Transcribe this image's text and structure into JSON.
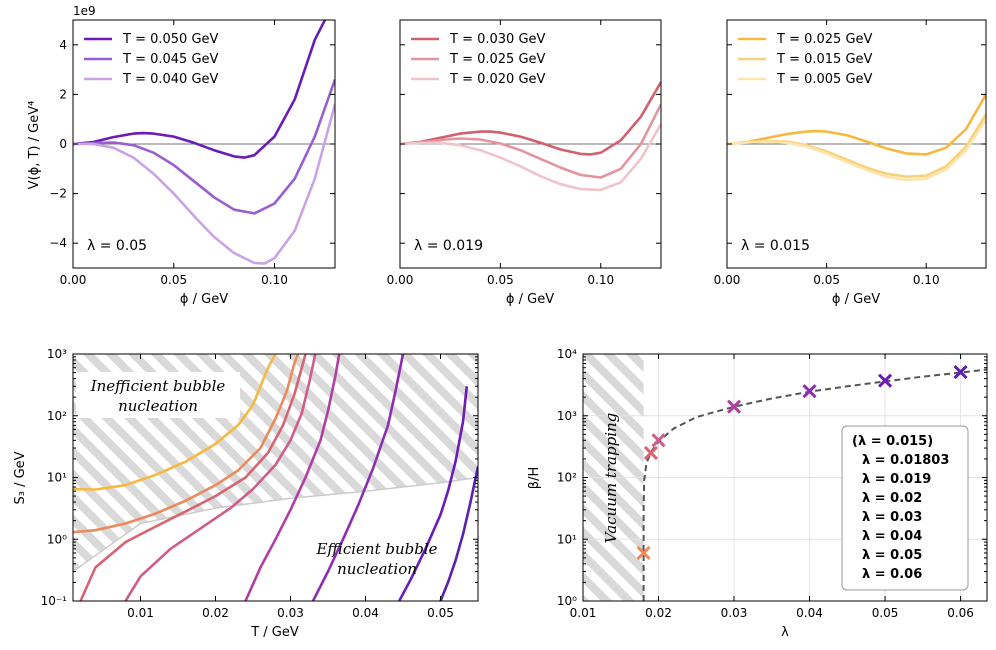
{
  "colors": {
    "purple_dark": "#6a1cb8",
    "purple_mid": "#9a5ed0",
    "purple_light": "#c9a3e6",
    "red_dark": "#d2606e",
    "red_mid": "#e294a0",
    "red_light": "#f0c4cb",
    "yellow_dark": "#f5b942",
    "yellow_mid": "#f8d27a",
    "yellow_light": "#fbe4ae"
  },
  "chart_data": [
    {
      "id": "p1",
      "type": "line",
      "xlim": [
        0,
        0.13
      ],
      "ylim": [
        -5,
        5
      ],
      "offset_text": "1e9",
      "xlabel": "ϕ / GeV",
      "ylabel": "V(ϕ, T) / GeV⁴",
      "xticks": [
        "0.00",
        "0.05",
        "0.10"
      ],
      "xtick_values": [
        0,
        0.05,
        0.1
      ],
      "yticks": [
        "−4",
        "−2",
        "0",
        "2",
        "4"
      ],
      "ytick_values": [
        -4,
        -2,
        0,
        2,
        4
      ],
      "lambda_label": "λ = 0.05",
      "lambda_color": "#6a1cb8",
      "series": [
        {
          "name": "T = 0.050 GeV",
          "color": "#6a1cb8",
          "x": [
            0,
            0.01,
            0.02,
            0.03,
            0.035,
            0.04,
            0.05,
            0.06,
            0.07,
            0.08,
            0.085,
            0.09,
            0.1,
            0.11,
            0.12,
            0.125
          ],
          "y": [
            0,
            0.08,
            0.28,
            0.42,
            0.44,
            0.42,
            0.3,
            0.05,
            -0.25,
            -0.5,
            -0.55,
            -0.45,
            0.3,
            1.8,
            4.2,
            5.0
          ]
        },
        {
          "name": "T = 0.045 GeV",
          "color": "#9a5ed0",
          "x": [
            0,
            0.01,
            0.02,
            0.03,
            0.04,
            0.05,
            0.06,
            0.07,
            0.08,
            0.09,
            0.1,
            0.11,
            0.12,
            0.13
          ],
          "y": [
            0,
            0.04,
            0.06,
            -0.05,
            -0.35,
            -0.85,
            -1.5,
            -2.15,
            -2.65,
            -2.8,
            -2.4,
            -1.4,
            0.3,
            2.6
          ]
        },
        {
          "name": "T = 0.040 GeV",
          "color": "#c9a3e6",
          "x": [
            0,
            0.01,
            0.02,
            0.03,
            0.04,
            0.05,
            0.06,
            0.07,
            0.08,
            0.09,
            0.095,
            0.1,
            0.11,
            0.12,
            0.13
          ],
          "y": [
            0,
            0.0,
            -0.15,
            -0.55,
            -1.2,
            -2.0,
            -2.9,
            -3.75,
            -4.4,
            -4.8,
            -4.82,
            -4.6,
            -3.5,
            -1.4,
            1.6
          ]
        }
      ]
    },
    {
      "id": "p2",
      "type": "line",
      "xlim": [
        0,
        0.13
      ],
      "ylim": [
        -5,
        5
      ],
      "xlabel": "ϕ / GeV",
      "xticks": [
        "0.00",
        "0.05",
        "0.10"
      ],
      "xtick_values": [
        0,
        0.05,
        0.1
      ],
      "lambda_label": "λ = 0.019",
      "lambda_color": "#d2606e",
      "series": [
        {
          "name": "T = 0.030 GeV",
          "color": "#d2606e",
          "x": [
            0,
            0.01,
            0.02,
            0.03,
            0.04,
            0.045,
            0.05,
            0.06,
            0.07,
            0.08,
            0.09,
            0.095,
            0.1,
            0.11,
            0.12,
            0.13
          ],
          "y": [
            0,
            0.08,
            0.25,
            0.42,
            0.5,
            0.5,
            0.46,
            0.3,
            0.05,
            -0.22,
            -0.4,
            -0.42,
            -0.35,
            0.15,
            1.1,
            2.5
          ]
        },
        {
          "name": "T = 0.025 GeV",
          "color": "#e294a0",
          "x": [
            0,
            0.01,
            0.02,
            0.03,
            0.04,
            0.05,
            0.06,
            0.07,
            0.08,
            0.09,
            0.1,
            0.11,
            0.12,
            0.13
          ],
          "y": [
            0,
            0.06,
            0.16,
            0.22,
            0.18,
            0.02,
            -0.25,
            -0.6,
            -0.95,
            -1.25,
            -1.35,
            -1.0,
            0.0,
            1.6
          ]
        },
        {
          "name": "T = 0.020 GeV",
          "color": "#f0c4cb",
          "x": [
            0,
            0.01,
            0.02,
            0.03,
            0.04,
            0.05,
            0.06,
            0.07,
            0.08,
            0.09,
            0.1,
            0.11,
            0.12,
            0.13
          ],
          "y": [
            0,
            0.04,
            0.05,
            -0.05,
            -0.25,
            -0.55,
            -0.9,
            -1.3,
            -1.62,
            -1.82,
            -1.85,
            -1.55,
            -0.6,
            0.8
          ]
        }
      ]
    },
    {
      "id": "p3",
      "type": "line",
      "xlim": [
        0,
        0.13
      ],
      "ylim": [
        -5,
        5
      ],
      "xlabel": "ϕ / GeV",
      "xticks": [
        "0.00",
        "0.05",
        "0.10"
      ],
      "xtick_values": [
        0,
        0.05,
        0.1
      ],
      "lambda_label": "λ = 0.015",
      "lambda_color": "#f5b942",
      "series": [
        {
          "name": "T = 0.025 GeV",
          "color": "#f5b942",
          "x": [
            0,
            0.01,
            0.02,
            0.03,
            0.04,
            0.045,
            0.05,
            0.06,
            0.07,
            0.08,
            0.09,
            0.1,
            0.11,
            0.12,
            0.13
          ],
          "y": [
            0,
            0.08,
            0.24,
            0.4,
            0.5,
            0.52,
            0.5,
            0.36,
            0.1,
            -0.18,
            -0.38,
            -0.42,
            -0.15,
            0.6,
            2.0
          ]
        },
        {
          "name": "T = 0.015 GeV",
          "color": "#f8d27a",
          "x": [
            0,
            0.01,
            0.02,
            0.03,
            0.04,
            0.05,
            0.06,
            0.07,
            0.08,
            0.09,
            0.1,
            0.11,
            0.12,
            0.13
          ],
          "y": [
            0,
            0.06,
            0.12,
            0.1,
            -0.05,
            -0.3,
            -0.62,
            -0.95,
            -1.2,
            -1.32,
            -1.28,
            -0.9,
            -0.1,
            1.2
          ]
        },
        {
          "name": "T = 0.005 GeV",
          "color": "#fbe4ae",
          "x": [
            0,
            0.01,
            0.02,
            0.03,
            0.04,
            0.05,
            0.06,
            0.07,
            0.08,
            0.09,
            0.1,
            0.11,
            0.12,
            0.13
          ],
          "y": [
            0,
            0.06,
            0.1,
            0.05,
            -0.1,
            -0.38,
            -0.72,
            -1.05,
            -1.32,
            -1.45,
            -1.4,
            -1.02,
            -0.25,
            1.0
          ]
        }
      ]
    },
    {
      "id": "p4",
      "type": "line",
      "yscale": "log",
      "xlim": [
        0.001,
        0.055
      ],
      "ylim": [
        0.1,
        1000
      ],
      "xlabel": "T / GeV",
      "ylabel": "S₃ / GeV",
      "xticks": [
        "0.01",
        "0.02",
        "0.03",
        "0.04",
        "0.05"
      ],
      "xtick_values": [
        0.01,
        0.02,
        0.03,
        0.04,
        0.05
      ],
      "yticks": [
        "10⁻¹",
        "10⁰",
        "10¹",
        "10²",
        "10³"
      ],
      "ytick_values": [
        0.1,
        1,
        10,
        100,
        1000
      ],
      "annotations": [
        "Inefficient bubble",
        "nucleation",
        "Efficient bubble",
        "nucleation"
      ],
      "boundary": {
        "x": [
          0.001,
          0.01,
          0.02,
          0.03,
          0.04,
          0.05,
          0.055
        ],
        "y": [
          0.3,
          1.8,
          3.2,
          4.6,
          6.0,
          8.2,
          10.0
        ]
      },
      "series": [
        {
          "name": "λ = 0.015",
          "color": "#f5b942",
          "x": [
            0.001,
            0.004,
            0.008,
            0.012,
            0.016,
            0.02,
            0.023,
            0.025,
            0.026,
            0.027,
            0.028
          ],
          "y": [
            6.5,
            6.4,
            7.5,
            11,
            18,
            35,
            70,
            150,
            300,
            600,
            1000
          ]
        },
        {
          "name": "λ = 0.01803",
          "color": "#ec8a5d",
          "x": [
            0.001,
            0.004,
            0.008,
            0.012,
            0.016,
            0.02,
            0.023,
            0.026,
            0.028,
            0.0295,
            0.0305,
            0.031
          ],
          "y": [
            1.3,
            1.4,
            1.8,
            2.6,
            4.2,
            7.5,
            13,
            30,
            90,
            250,
            700,
            1000
          ]
        },
        {
          "name": "λ = 0.019",
          "color": "#d86472",
          "x": [
            0.002,
            0.004,
            0.008,
            0.012,
            0.016,
            0.02,
            0.024,
            0.027,
            0.029,
            0.0305,
            0.0315,
            0.032
          ],
          "y": [
            0.1,
            0.35,
            0.9,
            1.6,
            2.8,
            5.0,
            10,
            25,
            70,
            220,
            600,
            1000
          ]
        },
        {
          "name": "λ = 0.02",
          "color": "#cf5c8a",
          "x": [
            0.008,
            0.01,
            0.014,
            0.018,
            0.022,
            0.025,
            0.028,
            0.03,
            0.0315,
            0.0325,
            0.0333
          ],
          "y": [
            0.1,
            0.25,
            0.7,
            1.5,
            3.2,
            6.5,
            16,
            40,
            110,
            350,
            1000
          ]
        },
        {
          "name": "λ = 0.03",
          "color": "#b03da3",
          "x": [
            0.024,
            0.026,
            0.028,
            0.03,
            0.032,
            0.034,
            0.035,
            0.036,
            0.0365
          ],
          "y": [
            0.1,
            0.35,
            1.0,
            3.0,
            10,
            40,
            120,
            450,
            1000
          ]
        },
        {
          "name": "λ = 0.04",
          "color": "#8d2eb0",
          "x": [
            0.033,
            0.035,
            0.037,
            0.039,
            0.041,
            0.043,
            0.044,
            0.045
          ],
          "y": [
            0.1,
            0.3,
            1.0,
            3.5,
            14,
            70,
            250,
            1000
          ]
        },
        {
          "name": "λ = 0.05",
          "color": "#6a1cb8",
          "x": [
            0.0445,
            0.046,
            0.048,
            0.05,
            0.051,
            0.052,
            0.053,
            0.0535
          ],
          "y": [
            0.1,
            0.22,
            0.7,
            2.5,
            6,
            18,
            80,
            300
          ]
        },
        {
          "name": "λ = 0.06",
          "color": "#5a20b0",
          "x": [
            0.05,
            0.051,
            0.052,
            0.053,
            0.054,
            0.055
          ],
          "y": [
            0.1,
            0.2,
            0.45,
            1.2,
            4,
            15
          ]
        }
      ]
    },
    {
      "id": "p5",
      "type": "scatter",
      "yscale": "log",
      "xlim": [
        0.01,
        0.0635
      ],
      "ylim": [
        1,
        10000
      ],
      "xlabel": "λ",
      "ylabel": "β/H",
      "xticks": [
        "0.01",
        "0.02",
        "0.03",
        "0.04",
        "0.05",
        "0.06"
      ],
      "xtick_values": [
        0.01,
        0.02,
        0.03,
        0.04,
        0.05,
        0.06
      ],
      "yticks": [
        "10⁰",
        "10¹",
        "10²",
        "10³",
        "10⁴"
      ],
      "ytick_values": [
        1,
        10,
        100,
        1000,
        10000
      ],
      "region_label": "Vacuum trapping",
      "trapping_limit": 0.01803,
      "trend": {
        "x": [
          0.01803,
          0.01803,
          0.0181,
          0.0184,
          0.019,
          0.02,
          0.022,
          0.025,
          0.03,
          0.035,
          0.04,
          0.045,
          0.05,
          0.055,
          0.06,
          0.0635
        ],
        "y": [
          1,
          30,
          90,
          170,
          260,
          380,
          620,
          950,
          1400,
          1900,
          2450,
          3000,
          3600,
          4300,
          5000,
          5600
        ]
      },
      "points": [
        {
          "label": "λ = 0.01803",
          "x": 0.01803,
          "y": 6,
          "color": "#ec8a5d"
        },
        {
          "label": "λ = 0.019",
          "x": 0.019,
          "y": 250,
          "color": "#d86472"
        },
        {
          "label": "λ = 0.02",
          "x": 0.02,
          "y": 400,
          "color": "#cf5c8a"
        },
        {
          "label": "λ = 0.03",
          "x": 0.03,
          "y": 1400,
          "color": "#b03da3"
        },
        {
          "label": "λ = 0.04",
          "x": 0.04,
          "y": 2500,
          "color": "#8d2eb0"
        },
        {
          "label": "λ = 0.05",
          "x": 0.05,
          "y": 3700,
          "color": "#6a1cb8"
        },
        {
          "label": "λ = 0.06",
          "x": 0.06,
          "y": 5100,
          "color": "#5a20b0"
        }
      ],
      "legend": [
        {
          "label": "(λ = 0.015)",
          "color": "#f5b942"
        },
        {
          "label": "λ = 0.01803",
          "color": "#ec8a5d"
        },
        {
          "label": "λ = 0.019",
          "color": "#d86472"
        },
        {
          "label": "λ = 0.02",
          "color": "#cf5c8a"
        },
        {
          "label": "λ = 0.03",
          "color": "#b03da3"
        },
        {
          "label": "λ = 0.04",
          "color": "#8d2eb0"
        },
        {
          "label": "λ = 0.05",
          "color": "#6a1cb8"
        },
        {
          "label": "λ = 0.06",
          "color": "#5a20b0"
        }
      ]
    }
  ]
}
